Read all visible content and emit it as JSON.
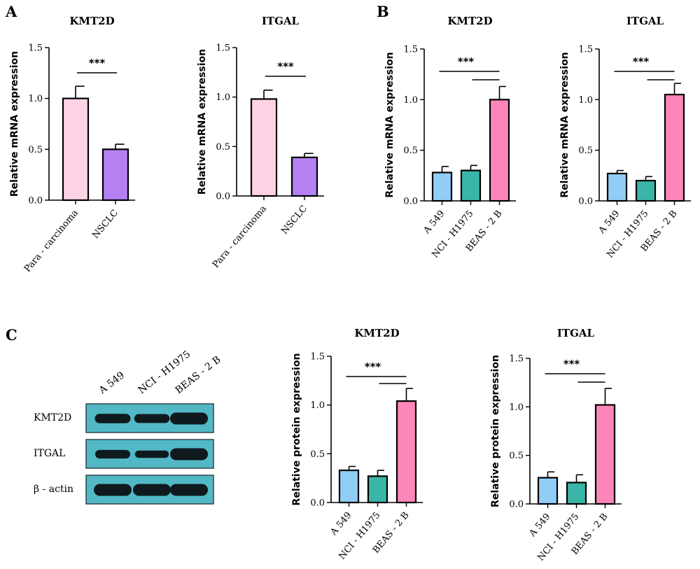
{
  "panels": {
    "A": "A",
    "B": "B",
    "C": "C"
  },
  "western_blot": {
    "lanes": [
      "A 549",
      "NCI - H1975",
      "BEAS - 2 B"
    ],
    "rows": [
      {
        "label": "KMT2D",
        "intensity": [
          0.7,
          0.65,
          1.0
        ]
      },
      {
        "label": "ITGAL",
        "intensity": [
          0.6,
          0.45,
          1.0
        ]
      },
      {
        "label": "β - actin",
        "intensity": [
          1.0,
          1.0,
          1.0
        ]
      }
    ],
    "background_color": "#52b8c6",
    "band_color": "#0f1a1e"
  },
  "chart_data": [
    {
      "type": "bar",
      "panel": "A",
      "title": "KMT2D",
      "ylabel": "Relative mRNA expression",
      "categories": [
        "Para - carcinoma",
        "NSCLC"
      ],
      "values": [
        1.0,
        0.5
      ],
      "errors": [
        0.12,
        0.05
      ],
      "colors": [
        "#fdd3e5",
        "#b580f2"
      ],
      "ylim": [
        0,
        1.5
      ],
      "yticks": [
        "0.0",
        "0.5",
        "1.0",
        "1.5"
      ],
      "significance": [
        {
          "label": "***",
          "from": 0,
          "to": 1
        }
      ]
    },
    {
      "type": "bar",
      "panel": "A",
      "title": "ITGAL",
      "ylabel": "Relative mRNA expression",
      "categories": [
        "Para - carcinoma",
        "NSCLC"
      ],
      "values": [
        0.98,
        0.39
      ],
      "errors": [
        0.09,
        0.04
      ],
      "colors": [
        "#fdd3e5",
        "#b580f2"
      ],
      "ylim": [
        0,
        1.5
      ],
      "yticks": [
        "0.0",
        "0.5",
        "1.0",
        "1.5"
      ],
      "significance": [
        {
          "label": "***",
          "from": 0,
          "to": 1
        }
      ]
    },
    {
      "type": "bar",
      "panel": "B",
      "title": "KMT2D",
      "ylabel": "Relative mRNA expression",
      "categories": [
        "A 549",
        "NCI - H1975",
        "BEAS - 2 B"
      ],
      "values": [
        0.28,
        0.3,
        1.0
      ],
      "errors": [
        0.06,
        0.05,
        0.13
      ],
      "colors": [
        "#92cdf6",
        "#3ab5a7",
        "#fc86b8"
      ],
      "ylim": [
        0,
        1.5
      ],
      "yticks": [
        "0.0",
        "0.5",
        "1.0",
        "1.5"
      ],
      "significance": [
        {
          "label": "***",
          "from": 0,
          "to": 2
        },
        {
          "label": "",
          "from": 1,
          "to": 2
        }
      ]
    },
    {
      "type": "bar",
      "panel": "B",
      "title": "ITGAL",
      "ylabel": "Relative mRNA expression",
      "categories": [
        "A 549",
        "NCI - H1975",
        "BEAS - 2 B"
      ],
      "values": [
        0.27,
        0.2,
        1.05
      ],
      "errors": [
        0.03,
        0.04,
        0.11
      ],
      "colors": [
        "#92cdf6",
        "#3ab5a7",
        "#fc86b8"
      ],
      "ylim": [
        0,
        1.5
      ],
      "yticks": [
        "0.0",
        "0.5",
        "1.0",
        "1.5"
      ],
      "significance": [
        {
          "label": "***",
          "from": 0,
          "to": 2
        },
        {
          "label": "",
          "from": 1,
          "to": 2
        }
      ]
    },
    {
      "type": "bar",
      "panel": "C",
      "title": "KMT2D",
      "ylabel": "Relative protein expression",
      "categories": [
        "A 549",
        "NCI - H1975",
        "BEAS - 2 B"
      ],
      "values": [
        0.33,
        0.27,
        1.04
      ],
      "errors": [
        0.04,
        0.06,
        0.13
      ],
      "colors": [
        "#92cdf6",
        "#3ab5a7",
        "#fc86b8"
      ],
      "ylim": [
        0,
        1.5
      ],
      "yticks": [
        "0.0",
        "0.5",
        "1.0",
        "1.5"
      ],
      "significance": [
        {
          "label": "***",
          "from": 0,
          "to": 2
        },
        {
          "label": "",
          "from": 1,
          "to": 2
        }
      ]
    },
    {
      "type": "bar",
      "panel": "C",
      "title": "ITGAL",
      "ylabel": "Relative protein expression",
      "categories": [
        "A 549",
        "NCI - H1975",
        "BEAS - 2 B"
      ],
      "values": [
        0.27,
        0.22,
        1.02
      ],
      "errors": [
        0.06,
        0.08,
        0.17
      ],
      "colors": [
        "#92cdf6",
        "#3ab5a7",
        "#fc86b8"
      ],
      "ylim": [
        0,
        1.5
      ],
      "yticks": [
        "0.0",
        "0.5",
        "1.0",
        "1.5"
      ],
      "significance": [
        {
          "label": "***",
          "from": 0,
          "to": 2
        },
        {
          "label": "",
          "from": 1,
          "to": 2
        }
      ]
    }
  ]
}
